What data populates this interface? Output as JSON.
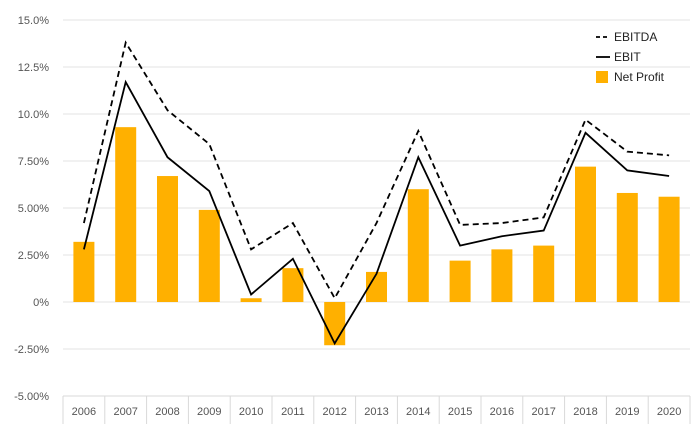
{
  "chart_data": {
    "type": "bar",
    "categories": [
      "2006",
      "2007",
      "2008",
      "2009",
      "2010",
      "2011",
      "2012",
      "2013",
      "2014",
      "2015",
      "2016",
      "2017",
      "2018",
      "2019",
      "2020"
    ],
    "series": [
      {
        "name": "EBITDA",
        "kind": "line",
        "style": "dashed",
        "color": "#000000",
        "values": [
          4.2,
          13.8,
          10.2,
          8.4,
          2.8,
          4.2,
          0.2,
          4.2,
          9.1,
          4.1,
          4.2,
          4.5,
          9.7,
          8.0,
          7.8
        ]
      },
      {
        "name": "EBIT",
        "kind": "line",
        "style": "solid",
        "color": "#000000",
        "values": [
          2.8,
          11.7,
          7.7,
          5.9,
          0.4,
          2.3,
          -2.2,
          1.5,
          7.7,
          3.0,
          3.5,
          3.8,
          9.0,
          7.0,
          6.7
        ]
      },
      {
        "name": "Net Profit",
        "kind": "bar",
        "color": "#FFB000",
        "values": [
          3.2,
          9.3,
          6.7,
          4.9,
          0.2,
          1.8,
          -2.3,
          1.6,
          6.0,
          2.2,
          2.8,
          3.0,
          7.2,
          5.8,
          5.6
        ]
      }
    ],
    "y_ticks": [
      -5,
      -2.5,
      0,
      2.5,
      5,
      7.5,
      10,
      12.5,
      15
    ],
    "y_tick_labels": [
      "-5.00%",
      "-2.50%",
      "0%",
      "2.50%",
      "5.00%",
      "7.50%",
      "10.0%",
      "12.5%",
      "15.0%"
    ],
    "ylim": [
      -5,
      15
    ],
    "grid": true,
    "legend_position": "top-right",
    "title": "",
    "xlabel": "",
    "ylabel": ""
  }
}
